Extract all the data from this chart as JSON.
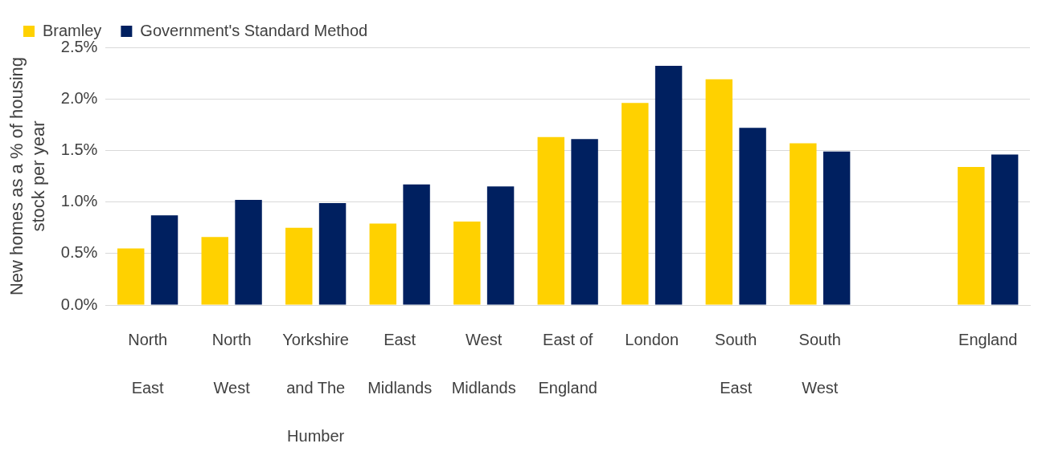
{
  "chart_data": {
    "type": "bar",
    "ylabel": "New homes as a % of housing stock per year",
    "categories": [
      "North East",
      "North West",
      "Yorkshire and The Humber",
      "East Midlands",
      "West Midlands",
      "East of England",
      "London",
      "South East",
      "South West",
      null,
      "England"
    ],
    "series": [
      {
        "name": "Bramley",
        "color": "#ffd100",
        "values": [
          0.55,
          0.66,
          0.75,
          0.79,
          0.81,
          1.63,
          1.96,
          2.19,
          1.57,
          null,
          1.34
        ]
      },
      {
        "name": "Government's Standard Method",
        "color": "#002060",
        "values": [
          0.87,
          1.02,
          0.99,
          1.17,
          1.15,
          1.61,
          2.32,
          1.72,
          1.49,
          null,
          1.46
        ]
      }
    ],
    "ylim": [
      0,
      2.5
    ],
    "yticks": [
      {
        "value": 0,
        "label": "0.0%"
      },
      {
        "value": 0.5,
        "label": "0.5%"
      },
      {
        "value": 1,
        "label": "1.0%"
      },
      {
        "value": 1.5,
        "label": "1.5%"
      },
      {
        "value": 2,
        "label": "2.0%"
      },
      {
        "value": 2.5,
        "label": "2.5%"
      }
    ],
    "grid": "y",
    "legend": "top left"
  }
}
